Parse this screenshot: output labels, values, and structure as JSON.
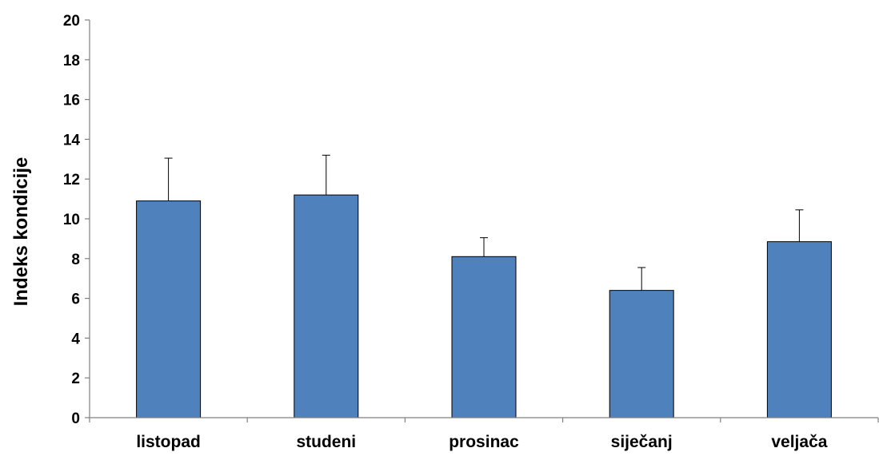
{
  "chart_data": {
    "type": "bar",
    "title": "",
    "xlabel": "",
    "ylabel": "Indeks kondicije",
    "ylim": [
      0,
      20
    ],
    "yticks": [
      0,
      2,
      4,
      6,
      8,
      10,
      12,
      14,
      16,
      18,
      20
    ],
    "grid": false,
    "legend": "none",
    "categories": [
      "listopad",
      "studeni",
      "prosinac",
      "siječanj",
      "veljača"
    ],
    "series": [
      {
        "values": [
          10.9,
          11.2,
          8.1,
          6.4,
          8.85
        ],
        "error_plus": [
          2.15,
          2.0,
          0.95,
          1.15,
          1.6
        ],
        "color": "#4f81bd"
      }
    ]
  }
}
